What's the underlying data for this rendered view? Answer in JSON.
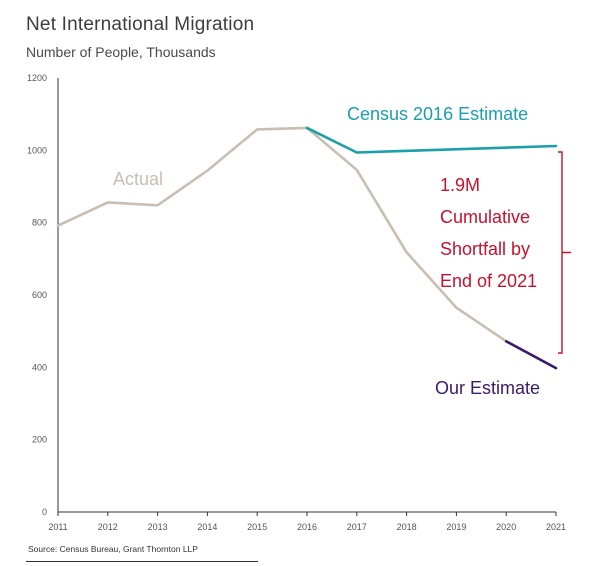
{
  "chart_data": {
    "type": "line",
    "title": "Net International Migration",
    "subtitle": "Number of People, Thousands",
    "ylim": [
      0,
      1200
    ],
    "y_ticks": [
      0,
      200,
      400,
      600,
      800,
      1000,
      1200
    ],
    "x_ticks": [
      2011,
      2012,
      2013,
      2014,
      2015,
      2016,
      2017,
      2018,
      2019,
      2020,
      2021
    ],
    "grid": false,
    "series": [
      {
        "name": "Actual",
        "color": "#c8bfb2",
        "points": [
          [
            2011,
            792
          ],
          [
            2012,
            856
          ],
          [
            2013,
            848
          ],
          [
            2014,
            944
          ],
          [
            2015,
            1058
          ],
          [
            2016,
            1062
          ],
          [
            2017,
            946
          ],
          [
            2018,
            718
          ],
          [
            2019,
            565
          ],
          [
            2020,
            472
          ]
        ]
      },
      {
        "name": "Census 2016 Estimate",
        "color": "#1a9fab",
        "points": [
          [
            2016,
            1062
          ],
          [
            2017,
            994
          ],
          [
            2021,
            1012
          ]
        ]
      },
      {
        "name": "Our Estimate",
        "color": "#3b1a6b",
        "points": [
          [
            2020,
            472
          ],
          [
            2021,
            398
          ]
        ]
      }
    ],
    "annotation": {
      "lines": [
        "1.9M",
        "Cumulative",
        "Shortfall by",
        "End of 2021"
      ],
      "color": "#c8102e"
    }
  },
  "source": "Source: Census Bureau, Grant Thornton LLP"
}
